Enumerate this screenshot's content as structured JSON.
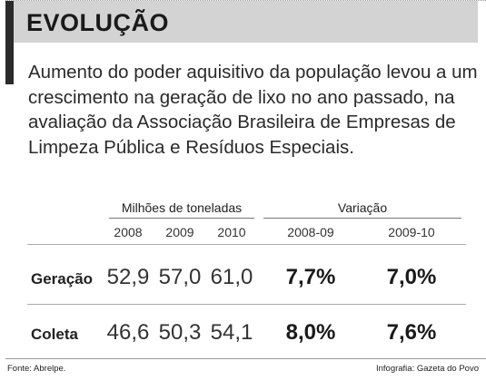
{
  "header": {
    "title": "EVOLUÇÃO"
  },
  "description": "Aumento do poder aquisitivo da população levou a um crescimento na geração de lixo no ano passado, na avaliação da Associação Brasileira de Empresas de Limpeza Pública e Resíduos Especiais.",
  "table": {
    "group_headers": [
      "Milhões de toneladas",
      "Variação"
    ],
    "columns": [
      "2008",
      "2009",
      "2010",
      "2008-09",
      "2009-10"
    ],
    "rows": [
      {
        "label": "Geração",
        "values": [
          "52,9",
          "57,0",
          "61,0"
        ],
        "variations": [
          "7,7%",
          "7,0%"
        ]
      },
      {
        "label": "Coleta",
        "values": [
          "46,6",
          "50,3",
          "54,1"
        ],
        "variations": [
          "8,0%",
          "7,6%"
        ]
      }
    ]
  },
  "footer": {
    "source": "Fonte: Abrelpe.",
    "credit": "Infografia: Gazeta do Povo"
  }
}
